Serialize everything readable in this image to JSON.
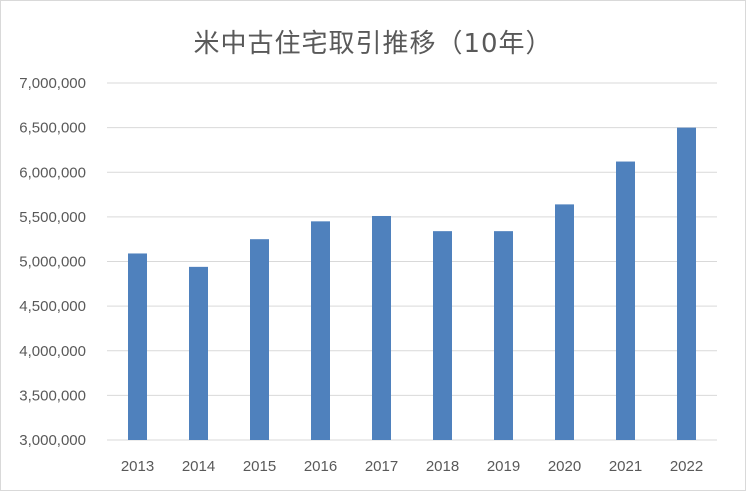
{
  "chart_data": {
    "type": "bar",
    "title": "米中古住宅取引推移（10年）",
    "categories": [
      "2013",
      "2014",
      "2015",
      "2016",
      "2017",
      "2018",
      "2019",
      "2020",
      "2021",
      "2022"
    ],
    "values": [
      5090000,
      4940000,
      5250000,
      5450000,
      5510000,
      5340000,
      5340000,
      5640000,
      6120000,
      6500000
    ],
    "ylim": [
      3000000,
      7000000
    ],
    "yticks": [
      "3,000,000",
      "3,500,000",
      "4,000,000",
      "4,500,000",
      "5,000,000",
      "5,500,000",
      "6,000,000",
      "6,500,000",
      "7,000,000"
    ],
    "ytick_values": [
      3000000,
      3500000,
      4000000,
      4500000,
      5000000,
      5500000,
      6000000,
      6500000,
      7000000
    ],
    "grid": true,
    "bar_color": "#4f81bd",
    "grid_color": "#d9d9d9",
    "text_color": "#595959"
  }
}
